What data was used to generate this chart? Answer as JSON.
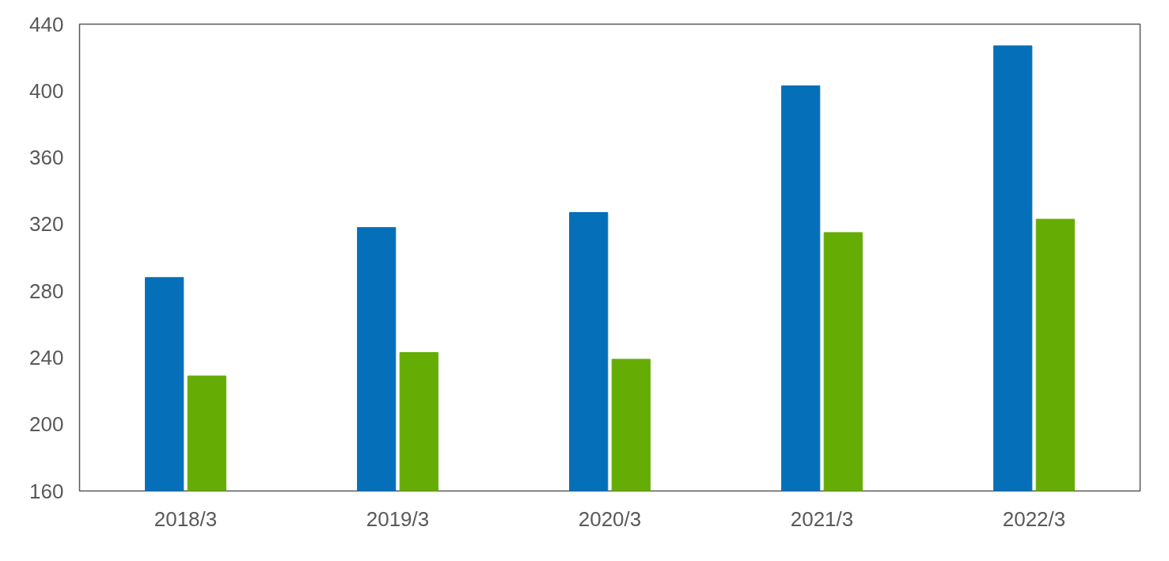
{
  "chart_data": {
    "type": "bar",
    "categories": [
      "2018/3",
      "2019/3",
      "2020/3",
      "2021/3",
      "2022/3"
    ],
    "series": [
      {
        "color": "#0570b9",
        "values": [
          288,
          318,
          327,
          403,
          427
        ]
      },
      {
        "color": "#65ad05",
        "values": [
          229,
          243,
          239,
          315,
          323
        ]
      }
    ],
    "ylim": [
      160,
      440
    ],
    "yticks": [
      160,
      200,
      240,
      280,
      320,
      360,
      400,
      440
    ],
    "grid": false
  }
}
